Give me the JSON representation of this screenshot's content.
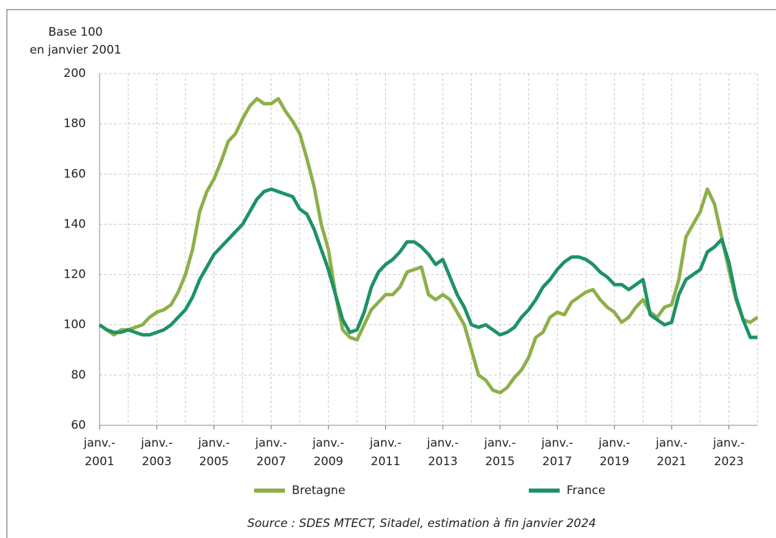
{
  "chart_data": {
    "type": "line",
    "y_label": [
      "Base 100",
      "en janvier 2001"
    ],
    "source": "Source : SDES MTECT, Sitadel, estimation à fin janvier 2024",
    "categories": [
      "janv.-2001",
      null,
      null,
      null,
      null,
      null,
      null,
      null,
      "janv.-2003",
      null,
      null,
      null,
      null,
      null,
      null,
      null,
      "janv.-2005",
      null,
      null,
      null,
      null,
      null,
      null,
      null,
      "janv.-2007",
      null,
      null,
      null,
      null,
      null,
      null,
      null,
      "janv.-2009",
      null,
      null,
      null,
      null,
      null,
      null,
      null,
      "janv.-2011",
      null,
      null,
      null,
      null,
      null,
      null,
      null,
      "janv.-2013",
      null,
      null,
      null,
      null,
      null,
      null,
      null,
      "janv.-2015",
      null,
      null,
      null,
      null,
      null,
      null,
      null,
      "janv.-2017",
      null,
      null,
      null,
      null,
      null,
      null,
      null,
      "janv.-2019",
      null,
      null,
      null,
      null,
      null,
      null,
      null,
      "janv.-2021",
      null,
      null,
      null,
      null,
      null,
      null,
      null,
      "janv.-2023",
      null,
      null,
      null,
      null
    ],
    "series": [
      {
        "name": "Bretagne",
        "color": "#8db04a",
        "values": [
          100,
          98,
          96,
          98,
          98,
          99,
          100,
          103,
          105,
          106,
          108,
          113,
          120,
          130,
          145,
          153,
          158,
          165,
          173,
          176,
          182,
          187,
          190,
          188,
          188,
          190,
          185,
          181,
          176,
          166,
          155,
          140,
          130,
          112,
          98,
          95,
          94,
          100,
          106,
          109,
          112,
          112,
          115,
          121,
          122,
          123,
          112,
          110,
          112,
          110,
          105,
          100,
          90,
          80,
          78,
          74,
          73,
          75,
          79,
          82,
          87,
          95,
          97,
          103,
          105,
          104,
          109,
          111,
          113,
          114,
          110,
          107,
          105,
          101,
          103,
          107,
          110,
          105,
          103,
          107,
          108,
          118,
          135,
          140,
          145,
          154,
          148,
          135,
          122,
          110,
          102,
          101,
          103
        ]
      },
      {
        "name": "France",
        "color": "#1e9266",
        "values": [
          100,
          98,
          97,
          97,
          98,
          97,
          96,
          96,
          97,
          98,
          100,
          103,
          106,
          111,
          118,
          123,
          128,
          131,
          134,
          137,
          140,
          145,
          150,
          153,
          154,
          153,
          152,
          151,
          146,
          144,
          138,
          130,
          122,
          112,
          102,
          97,
          98,
          105,
          115,
          121,
          124,
          126,
          129,
          133,
          133,
          131,
          128,
          124,
          126,
          119,
          112,
          107,
          100,
          99,
          100,
          98,
          96,
          97,
          99,
          103,
          106,
          110,
          115,
          118,
          122,
          125,
          127,
          127,
          126,
          124,
          121,
          119,
          116,
          116,
          114,
          116,
          118,
          104,
          102,
          100,
          101,
          112,
          118,
          120,
          122,
          129,
          131,
          134,
          125,
          111,
          102,
          95,
          95
        ]
      }
    ],
    "ylim": [
      60,
      200
    ],
    "yticks": [
      60,
      80,
      100,
      120,
      140,
      160,
      180,
      200
    ],
    "grid": true,
    "legend": "bottom"
  }
}
